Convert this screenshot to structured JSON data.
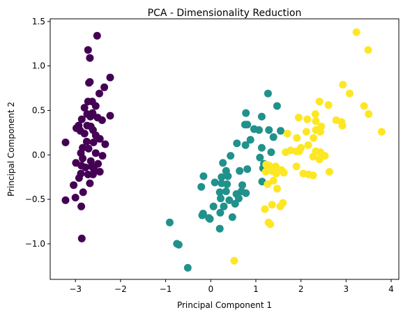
{
  "chart_data": {
    "type": "scatter",
    "title": "PCA - Dimensionality Reduction",
    "xlabel": "Principal Component 1",
    "ylabel": "Principal Component 2",
    "xlim": [
      -3.56,
      4.17
    ],
    "ylim": [
      -1.4,
      1.53
    ],
    "xticks": [
      -3,
      -2,
      -1,
      0,
      1,
      2,
      3,
      4
    ],
    "xtick_labels": [
      "−3",
      "−2",
      "−1",
      "0",
      "1",
      "2",
      "3",
      "4"
    ],
    "yticks": [
      -1.0,
      -0.5,
      0.0,
      0.5,
      1.0,
      1.5
    ],
    "ytick_labels": [
      "−1.0",
      "−0.5",
      "0.0",
      "0.5",
      "1.0",
      "1.5"
    ],
    "grid": false,
    "legend": "none",
    "series": [
      {
        "color": "#440154",
        "points": [
          [
            -2.52,
            1.34
          ],
          [
            -2.72,
            1.18
          ],
          [
            -2.68,
            1.09
          ],
          [
            -2.23,
            0.87
          ],
          [
            -2.68,
            0.82
          ],
          [
            -2.7,
            0.81
          ],
          [
            -2.36,
            0.76
          ],
          [
            -2.47,
            0.69
          ],
          [
            -2.72,
            0.6
          ],
          [
            -2.63,
            0.6
          ],
          [
            -2.55,
            0.55
          ],
          [
            -2.8,
            0.53
          ],
          [
            -2.62,
            0.47
          ],
          [
            -2.74,
            0.46
          ],
          [
            -2.67,
            0.43
          ],
          [
            -2.23,
            0.44
          ],
          [
            -2.51,
            0.42
          ],
          [
            -2.41,
            0.39
          ],
          [
            -2.86,
            0.4
          ],
          [
            -2.93,
            0.33
          ],
          [
            -2.74,
            0.33
          ],
          [
            -2.66,
            0.32
          ],
          [
            -2.98,
            0.3
          ],
          [
            -2.89,
            0.27
          ],
          [
            -2.61,
            0.28
          ],
          [
            -2.55,
            0.22
          ],
          [
            -2.8,
            0.24
          ],
          [
            -2.46,
            0.18
          ],
          [
            -2.75,
            0.15
          ],
          [
            -2.6,
            0.14
          ],
          [
            -3.22,
            0.14
          ],
          [
            -2.34,
            0.12
          ],
          [
            -2.84,
            0.08
          ],
          [
            -2.71,
            0.07
          ],
          [
            -2.88,
            0.02
          ],
          [
            -2.55,
            0.02
          ],
          [
            -2.4,
            -0.01
          ],
          [
            -2.84,
            -0.04
          ],
          [
            -2.66,
            -0.07
          ],
          [
            -2.99,
            -0.09
          ],
          [
            -2.87,
            -0.12
          ],
          [
            -2.64,
            -0.13
          ],
          [
            -2.78,
            -0.14
          ],
          [
            -2.59,
            -0.16
          ],
          [
            -2.5,
            -0.1
          ],
          [
            -2.88,
            -0.21
          ],
          [
            -2.72,
            -0.22
          ],
          [
            -2.92,
            -0.26
          ],
          [
            -2.61,
            -0.22
          ],
          [
            -2.46,
            -0.19
          ],
          [
            -2.68,
            -0.32
          ],
          [
            -3.04,
            -0.34
          ],
          [
            -2.83,
            -0.42
          ],
          [
            -3.22,
            -0.51
          ],
          [
            -3.0,
            -0.48
          ],
          [
            -2.87,
            -0.58
          ],
          [
            -2.86,
            -0.94
          ]
        ]
      },
      {
        "color": "#21918c",
        "points": [
          [
            1.27,
            0.69
          ],
          [
            1.47,
            0.55
          ],
          [
            0.78,
            0.47
          ],
          [
            1.13,
            0.43
          ],
          [
            1.55,
            0.27
          ],
          [
            0.76,
            0.34
          ],
          [
            0.81,
            0.34
          ],
          [
            0.96,
            0.29
          ],
          [
            1.29,
            0.28
          ],
          [
            1.07,
            0.28
          ],
          [
            1.39,
            0.2
          ],
          [
            0.88,
            0.17
          ],
          [
            0.58,
            0.13
          ],
          [
            0.77,
            0.11
          ],
          [
            1.13,
            0.08
          ],
          [
            1.34,
            0.03
          ],
          [
            1.09,
            -0.03
          ],
          [
            0.44,
            -0.01
          ],
          [
            0.27,
            -0.09
          ],
          [
            1.18,
            -0.1
          ],
          [
            1.16,
            -0.15
          ],
          [
            0.81,
            -0.16
          ],
          [
            0.64,
            -0.18
          ],
          [
            0.34,
            -0.18
          ],
          [
            0.24,
            -0.25
          ],
          [
            0.38,
            -0.24
          ],
          [
            -0.16,
            -0.24
          ],
          [
            0.09,
            -0.31
          ],
          [
            0.24,
            -0.32
          ],
          [
            0.36,
            -0.33
          ],
          [
            1.14,
            -0.3
          ],
          [
            0.7,
            -0.34
          ],
          [
            -0.21,
            -0.36
          ],
          [
            0.34,
            -0.41
          ],
          [
            0.68,
            -0.41
          ],
          [
            0.2,
            -0.42
          ],
          [
            0.57,
            -0.44
          ],
          [
            0.78,
            -0.43
          ],
          [
            0.62,
            -0.49
          ],
          [
            0.22,
            -0.49
          ],
          [
            0.41,
            -0.51
          ],
          [
            0.06,
            -0.58
          ],
          [
            0.54,
            -0.55
          ],
          [
            0.29,
            -0.58
          ],
          [
            -0.17,
            -0.66
          ],
          [
            -0.19,
            -0.68
          ],
          [
            -0.04,
            -0.71
          ],
          [
            -0.02,
            -0.72
          ],
          [
            0.21,
            -0.65
          ],
          [
            0.48,
            -0.7
          ],
          [
            0.2,
            -0.83
          ],
          [
            -0.91,
            -0.76
          ],
          [
            -0.75,
            -1.0
          ],
          [
            -0.71,
            -1.01
          ],
          [
            -0.51,
            -1.27
          ]
        ]
      },
      {
        "color": "#fde725",
        "points": [
          [
            3.23,
            1.38
          ],
          [
            3.49,
            1.18
          ],
          [
            2.93,
            0.79
          ],
          [
            3.08,
            0.69
          ],
          [
            2.41,
            0.6
          ],
          [
            2.61,
            0.56
          ],
          [
            3.4,
            0.55
          ],
          [
            3.5,
            0.46
          ],
          [
            2.32,
            0.46
          ],
          [
            1.95,
            0.42
          ],
          [
            2.14,
            0.4
          ],
          [
            2.33,
            0.38
          ],
          [
            2.9,
            0.37
          ],
          [
            2.78,
            0.39
          ],
          [
            2.45,
            0.32
          ],
          [
            2.33,
            0.28
          ],
          [
            2.12,
            0.26
          ],
          [
            2.43,
            0.26
          ],
          [
            2.92,
            0.33
          ],
          [
            3.79,
            0.26
          ],
          [
            1.7,
            0.24
          ],
          [
            1.91,
            0.19
          ],
          [
            2.28,
            0.19
          ],
          [
            2.16,
            0.11
          ],
          [
            2.0,
            0.08
          ],
          [
            1.77,
            0.05
          ],
          [
            1.96,
            0.04
          ],
          [
            2.43,
            0.03
          ],
          [
            2.27,
            -0.02
          ],
          [
            1.9,
            0.04
          ],
          [
            2.53,
            -0.01
          ],
          [
            2.33,
            0.04
          ],
          [
            2.41,
            -0.05
          ],
          [
            1.66,
            0.03
          ],
          [
            1.23,
            -0.11
          ],
          [
            1.29,
            -0.12
          ],
          [
            1.44,
            -0.13
          ],
          [
            1.9,
            -0.13
          ],
          [
            1.57,
            -0.17
          ],
          [
            1.36,
            -0.18
          ],
          [
            1.22,
            -0.19
          ],
          [
            1.45,
            -0.21
          ],
          [
            1.62,
            -0.2
          ],
          [
            2.05,
            -0.21
          ],
          [
            2.17,
            -0.22
          ],
          [
            2.27,
            -0.23
          ],
          [
            2.63,
            -0.19
          ],
          [
            1.39,
            -0.29
          ],
          [
            1.26,
            -0.33
          ],
          [
            1.47,
            -0.38
          ],
          [
            1.54,
            -0.58
          ],
          [
            1.36,
            -0.56
          ],
          [
            1.6,
            -0.54
          ],
          [
            1.2,
            -0.61
          ],
          [
            1.28,
            -0.76
          ],
          [
            1.32,
            -0.78
          ],
          [
            0.52,
            -1.19
          ]
        ]
      }
    ]
  }
}
